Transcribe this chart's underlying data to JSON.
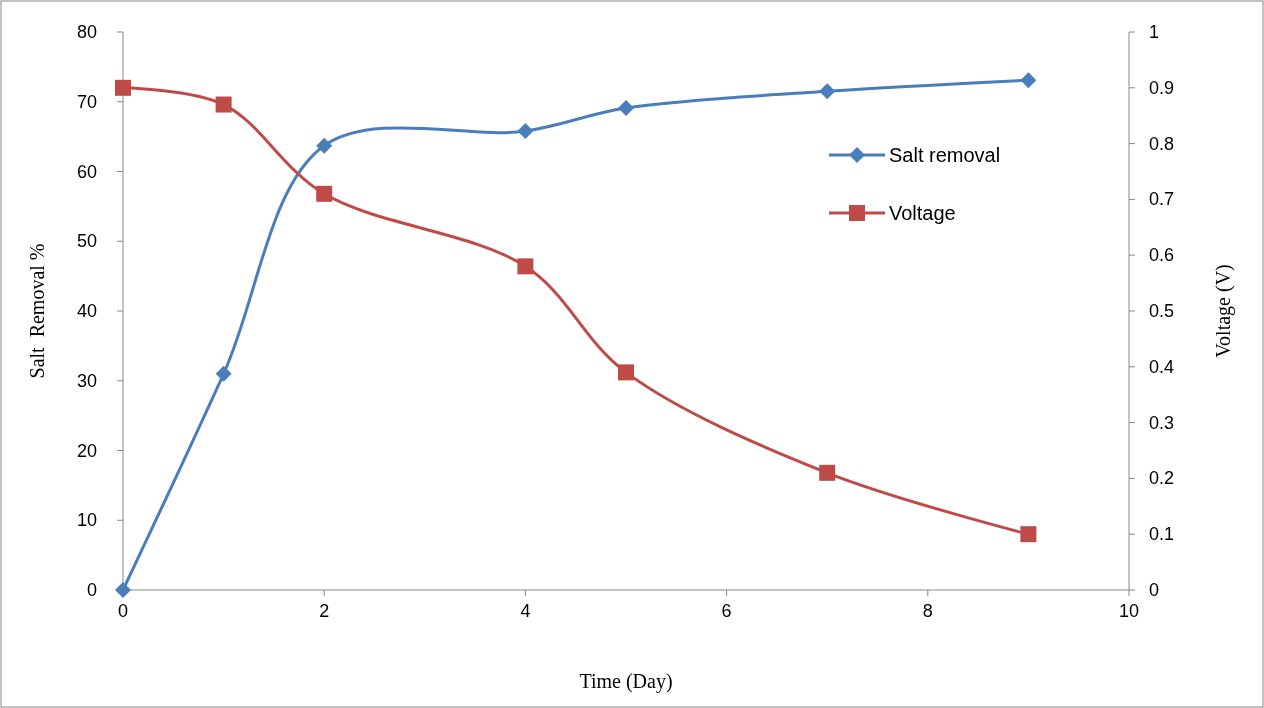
{
  "chart_data": {
    "type": "line",
    "xlabel": "Time (Day)",
    "ylabel": "Salt  Removal %",
    "y2label": "Voltage (V)",
    "x": [
      0,
      1,
      2,
      4,
      5,
      7,
      9
    ],
    "xlim": [
      0,
      10
    ],
    "xticks": [
      0,
      2,
      4,
      6,
      8,
      10
    ],
    "ylim": [
      0,
      80
    ],
    "yticks": [
      0,
      10,
      20,
      30,
      40,
      50,
      60,
      70,
      80
    ],
    "y2lim": [
      0,
      1
    ],
    "y2ticks": [
      0,
      0.1,
      0.2,
      0.3,
      0.4,
      0.5,
      0.6,
      0.7,
      0.8,
      0.9,
      1
    ],
    "series": [
      {
        "name": "Salt removal",
        "color": "#4a7ebb",
        "marker": "diamond",
        "values": [
          0,
          31,
          63.7,
          65.8,
          69.1,
          71.5,
          73.1
        ]
      },
      {
        "name": "Voltage",
        "color": "#be4b48",
        "marker": "square",
        "axis": "y2",
        "values": [
          0.9,
          0.87,
          0.71,
          0.58,
          0.39,
          0.21,
          0.1
        ]
      }
    ],
    "grid": false,
    "legend": "top right",
    "line_style": "solid"
  }
}
